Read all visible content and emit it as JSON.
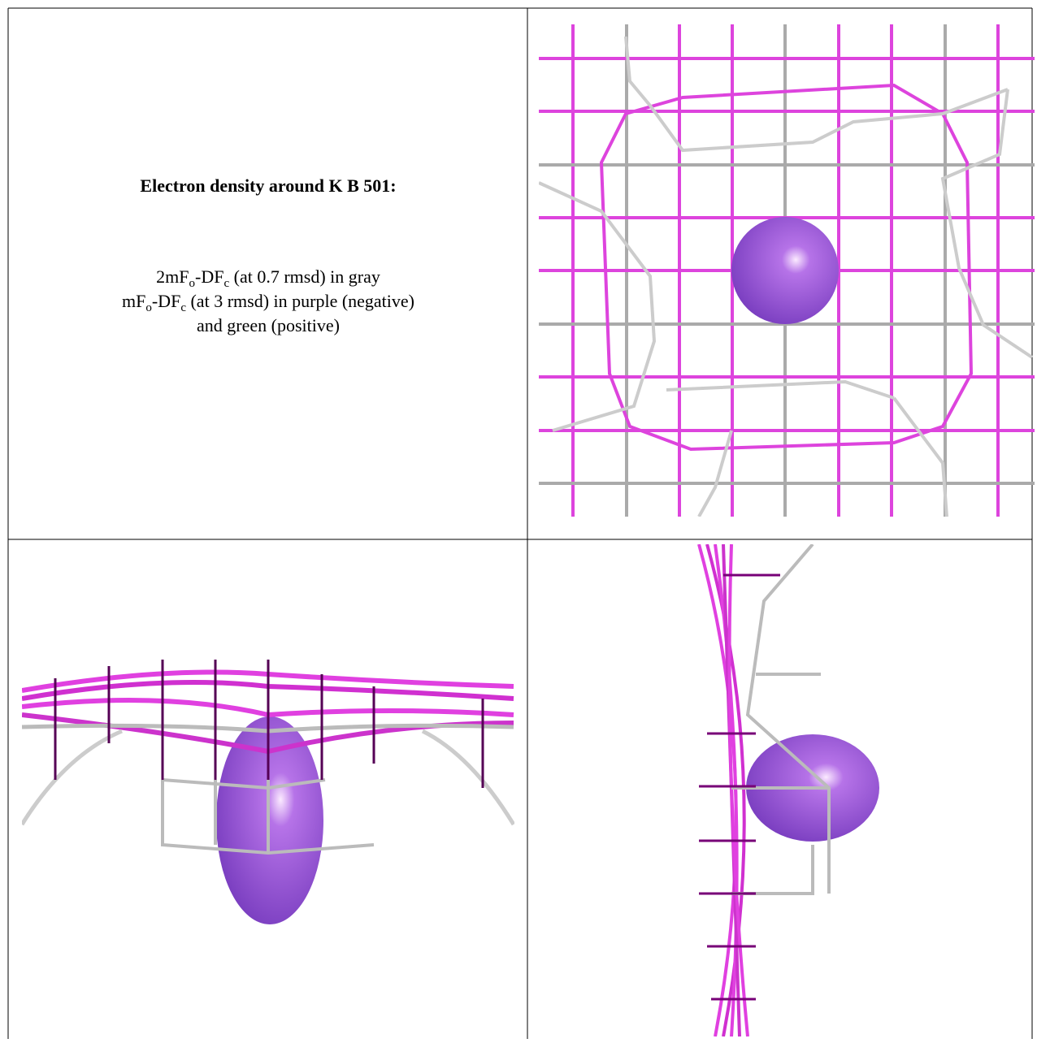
{
  "header": {
    "title": "Electron density around K B 501:"
  },
  "legend": {
    "lines": [
      [
        "2mF",
        "o",
        "-DF",
        "c",
        " (at 0.7 rmsd) in gray"
      ],
      [
        "mF",
        "o",
        "-DF",
        "c",
        " (at 3 rmsd) in purple (negative)"
      ],
      [
        "and green (positive)"
      ]
    ]
  }
}
